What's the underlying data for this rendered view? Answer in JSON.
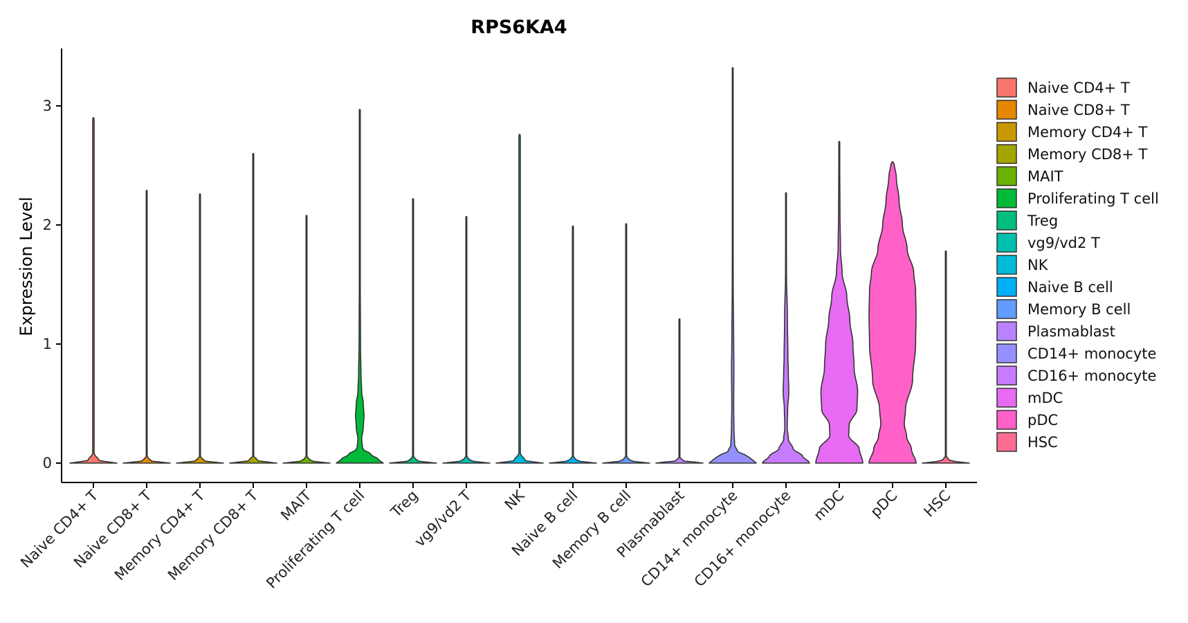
{
  "chart_data": {
    "type": "violin",
    "title": "RPS6KA4",
    "xlabel": "",
    "ylabel": "Expression Level",
    "ylim": [
      -0.17,
      3.5
    ],
    "yticks": [
      0,
      1,
      2,
      3
    ],
    "categories": [
      "Naive CD4+ T",
      "Naive CD8+ T",
      "Memory CD4+ T",
      "Memory CD8+ T",
      "MAIT",
      "Proliferating T cell",
      "Treg",
      "vg9/vd2 T",
      "NK",
      "Naive B cell",
      "Memory B cell",
      "Plasmablast",
      "CD14+ monocyte",
      "CD16+ monocyte",
      "mDC",
      "pDC",
      "HSC"
    ],
    "colors": [
      "#F8766D",
      "#E58700",
      "#C99800",
      "#A3A500",
      "#6BB100",
      "#00BA38",
      "#00BF7D",
      "#00C0AF",
      "#00BCD8",
      "#00B0F6",
      "#619CFF",
      "#B983FF",
      "#9590FF",
      "#C77CFF",
      "#E76BF3",
      "#FF61C9",
      "#FF6C91"
    ],
    "max_expression": [
      2.9,
      2.29,
      2.26,
      2.6,
      2.08,
      2.97,
      2.22,
      2.07,
      2.76,
      1.99,
      2.01,
      1.21,
      3.32,
      2.27,
      2.7,
      2.53,
      1.78
    ],
    "density_profiles": [
      [
        [
          0,
          1.0
        ],
        [
          0.02,
          0.25
        ],
        [
          0.08,
          0.03
        ]
      ],
      [
        [
          0,
          1.0
        ],
        [
          0.02,
          0.15
        ],
        [
          0.06,
          0.02
        ]
      ],
      [
        [
          0,
          1.0
        ],
        [
          0.02,
          0.15
        ],
        [
          0.06,
          0.02
        ]
      ],
      [
        [
          0,
          1.0
        ],
        [
          0.02,
          0.2
        ],
        [
          0.06,
          0.02
        ]
      ],
      [
        [
          0,
          1.0
        ],
        [
          0.02,
          0.15
        ],
        [
          0.06,
          0.02
        ]
      ],
      [
        [
          0,
          1.0
        ],
        [
          0.03,
          0.8
        ],
        [
          0.07,
          0.5
        ],
        [
          0.12,
          0.12
        ],
        [
          0.2,
          0.08
        ],
        [
          0.3,
          0.15
        ],
        [
          0.4,
          0.18
        ],
        [
          0.5,
          0.15
        ],
        [
          0.6,
          0.08
        ],
        [
          0.75,
          0.05
        ],
        [
          1.0,
          0.03
        ],
        [
          1.5,
          0.02
        ]
      ],
      [
        [
          0,
          1.0
        ],
        [
          0.02,
          0.15
        ],
        [
          0.06,
          0.02
        ]
      ],
      [
        [
          0,
          1.0
        ],
        [
          0.02,
          0.15
        ],
        [
          0.06,
          0.02
        ]
      ],
      [
        [
          0,
          1.0
        ],
        [
          0.02,
          0.25
        ],
        [
          0.08,
          0.03
        ]
      ],
      [
        [
          0,
          1.0
        ],
        [
          0.02,
          0.15
        ],
        [
          0.06,
          0.02
        ]
      ],
      [
        [
          0,
          1.0
        ],
        [
          0.02,
          0.15
        ],
        [
          0.06,
          0.02
        ]
      ],
      [
        [
          0,
          1.0
        ],
        [
          0.02,
          0.15
        ],
        [
          0.05,
          0.02
        ]
      ],
      [
        [
          0,
          1.0
        ],
        [
          0.05,
          0.7
        ],
        [
          0.1,
          0.2
        ],
        [
          0.15,
          0.08
        ],
        [
          0.3,
          0.05
        ],
        [
          0.5,
          0.04
        ],
        [
          0.8,
          0.05
        ],
        [
          1.0,
          0.04
        ],
        [
          1.5,
          0.02
        ],
        [
          2.5,
          0.01
        ]
      ],
      [
        [
          0,
          1.0
        ],
        [
          0.06,
          0.7
        ],
        [
          0.12,
          0.3
        ],
        [
          0.2,
          0.1
        ],
        [
          0.3,
          0.05
        ],
        [
          0.45,
          0.07
        ],
        [
          0.6,
          0.12
        ],
        [
          0.75,
          0.1
        ],
        [
          0.9,
          0.08
        ],
        [
          1.2,
          0.06
        ],
        [
          1.6,
          0.02
        ],
        [
          2.2,
          0.01
        ]
      ],
      [
        [
          0,
          1.0
        ],
        [
          0.12,
          0.85
        ],
        [
          0.23,
          0.4
        ],
        [
          0.32,
          0.42
        ],
        [
          0.45,
          0.75
        ],
        [
          0.6,
          0.78
        ],
        [
          0.8,
          0.63
        ],
        [
          1.0,
          0.58
        ],
        [
          1.2,
          0.45
        ],
        [
          1.4,
          0.32
        ],
        [
          1.6,
          0.12
        ],
        [
          1.8,
          0.05
        ],
        [
          2.1,
          0.03
        ],
        [
          2.5,
          0.02
        ]
      ],
      [
        [
          0,
          1.0
        ],
        [
          0.12,
          0.8
        ],
        [
          0.22,
          0.6
        ],
        [
          0.33,
          0.5
        ],
        [
          0.45,
          0.55
        ],
        [
          0.7,
          0.85
        ],
        [
          1.0,
          0.98
        ],
        [
          1.25,
          1.0
        ],
        [
          1.45,
          0.98
        ],
        [
          1.6,
          0.9
        ],
        [
          1.8,
          0.62
        ],
        [
          2.0,
          0.42
        ],
        [
          2.2,
          0.28
        ],
        [
          2.4,
          0.16
        ],
        [
          2.53,
          0.06
        ]
      ],
      [
        [
          0,
          1.0
        ],
        [
          0.02,
          0.15
        ],
        [
          0.06,
          0.02
        ]
      ]
    ],
    "width_scale": [
      1.0,
      1.0,
      1.0,
      1.0,
      1.0,
      1.0,
      1.0,
      1.0,
      1.0,
      1.0,
      1.0,
      1.0,
      1.0,
      1.0,
      1.0,
      1.0,
      1.0
    ],
    "legend_position": "right"
  }
}
